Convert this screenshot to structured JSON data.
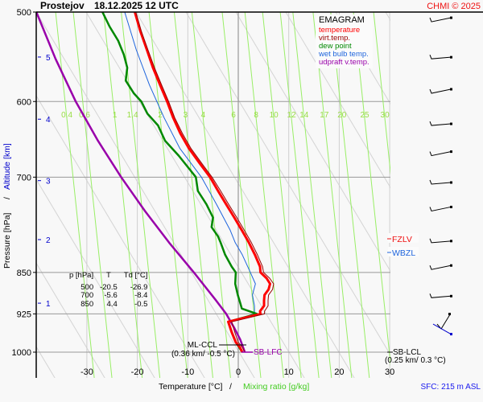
{
  "header": {
    "station": "Prostejov",
    "datetime": "18.12.2025 12 UTC",
    "copyright": "CHMI © 2025"
  },
  "legend": {
    "title": "EMAGRAM",
    "items": [
      {
        "label": "temperature",
        "color": "#ff0000"
      },
      {
        "label": "virt.temp.",
        "color": "#990000"
      },
      {
        "label": "dew point",
        "color": "#008800"
      },
      {
        "label": "wet bulb temp.",
        "color": "#1e64dc"
      },
      {
        "label": "udpraft v.temp.",
        "color": "#9900aa"
      }
    ]
  },
  "value_table": {
    "headers": [
      "p [hPa]",
      "T",
      "Td [°C]"
    ],
    "rows": [
      [
        "500",
        "-20.5",
        "-26.9"
      ],
      [
        "700",
        "-5.6",
        "-8.4"
      ],
      [
        "850",
        "4.4",
        "-0.5"
      ]
    ]
  },
  "annotations": {
    "ml_ccl": "ML-CCL",
    "ml_ccl_detail": "(0.36 km/ -0.5 °C)",
    "sb_lfc": "SB-LFC",
    "sb_lcl": "SB-LCL",
    "sb_lcl_detail": "(0.25 km/ 0.3 °C)",
    "fzlv": "FZLV",
    "wbzl": "WBZL",
    "sfc": "SFC: 215 m ASL"
  },
  "colors": {
    "temperature": "#ff0000",
    "virt_temp": "#990000",
    "dew_point": "#008800",
    "wet_bulb": "#1e64dc",
    "updraft": "#9900aa",
    "mixing": "#99ee66",
    "altitude": "#0000cc"
  },
  "chart_data": {
    "type": "line",
    "title": "Prostejov 18.12.2025 12 UTC",
    "xlabel": "Temperature [°C]",
    "xlabel2": "Mixing ratio [g/kg]",
    "ylabel": "Pressure [hPa]",
    "ylabel2": "Altitude [km]",
    "xlim": [
      -40,
      30
    ],
    "ylim": [
      1000,
      500
    ],
    "x_ticks": [
      "-30",
      "-20",
      "-10",
      "0",
      "10",
      "20",
      "30"
    ],
    "x_tick_values": [
      -30,
      -20,
      -10,
      0,
      10,
      20,
      30
    ],
    "y_ticks": [
      "500",
      "600",
      "700",
      "850",
      "925",
      "1000"
    ],
    "y_tick_values": [
      500,
      600,
      700,
      850,
      925,
      1000
    ],
    "altitude_ticks": [
      {
        "km": "1",
        "p": 905
      },
      {
        "km": "2",
        "p": 795
      },
      {
        "km": "3",
        "p": 705
      },
      {
        "km": "4",
        "p": 622
      },
      {
        "km": "5",
        "p": 548
      }
    ],
    "mixing_ratio_labels": [
      "0.4",
      "0.6",
      "1",
      "1.4",
      "2",
      "3",
      "4",
      "6",
      "8",
      "10",
      "12",
      "14",
      "17",
      "20",
      "25",
      "30"
    ],
    "mixing_ratio_temps_at_label": [
      -33,
      -29.5,
      -23.5,
      -20,
      -14.5,
      -9.5,
      -6,
      0,
      4.5,
      8,
      11.5,
      14,
      18,
      21.5,
      26,
      30
    ],
    "series": [
      {
        "name": "temperature",
        "p": [
          500,
          520,
          540,
          560,
          580,
          600,
          620,
          640,
          660,
          680,
          700,
          720,
          740,
          760,
          780,
          800,
          820,
          840,
          850,
          860,
          870,
          880,
          890,
          900,
          910,
          920,
          925,
          940,
          960,
          980,
          990,
          1000
        ],
        "t": [
          -20.5,
          -19.4,
          -18.1,
          -16.9,
          -15.5,
          -14.1,
          -12.9,
          -11.5,
          -9.8,
          -7.7,
          -5.6,
          -4.0,
          -2.4,
          -0.8,
          0.7,
          2.1,
          3.3,
          4.3,
          4.4,
          5.6,
          6.3,
          6.0,
          5.2,
          5.1,
          5.1,
          4.3,
          4.4,
          -2.0,
          -1.3,
          -0.5,
          0.3,
          0.8
        ]
      },
      {
        "name": "virt.temp.",
        "p": [
          500,
          520,
          540,
          560,
          580,
          600,
          620,
          640,
          660,
          680,
          700,
          720,
          740,
          760,
          780,
          800,
          820,
          840,
          850,
          860,
          870,
          880,
          890,
          900,
          910,
          920,
          925,
          940,
          960,
          980,
          990,
          1000
        ],
        "t": [
          -20.3,
          -19.2,
          -17.9,
          -16.6,
          -15.2,
          -13.8,
          -12.6,
          -11.1,
          -9.4,
          -7.3,
          -5.2,
          -3.5,
          -1.9,
          -0.3,
          1.2,
          2.6,
          3.8,
          4.8,
          5.0,
          6.2,
          7.0,
          6.8,
          6.0,
          5.9,
          5.9,
          5.2,
          5.2,
          -1.3,
          -0.7,
          0.0,
          0.8,
          1.3
        ]
      },
      {
        "name": "dew point",
        "p": [
          500,
          515,
          530,
          545,
          560,
          575,
          590,
          600,
          615,
          630,
          650,
          670,
          690,
          700,
          720,
          740,
          760,
          775,
          790,
          800,
          820,
          840,
          850,
          870,
          890,
          905,
          915,
          925,
          940,
          960,
          980,
          1000
        ],
        "t": [
          -26.9,
          -25.5,
          -23.8,
          -22.7,
          -22.0,
          -22.3,
          -20.7,
          -19.2,
          -18.0,
          -15.9,
          -14.5,
          -11.8,
          -9.5,
          -8.4,
          -8.0,
          -6.3,
          -5.0,
          -5.3,
          -4.0,
          -3.5,
          -2.6,
          -1.3,
          -0.5,
          -0.6,
          -0.1,
          0.4,
          0.7,
          3.7,
          -2.0,
          -1.3,
          -0.5,
          0.8
        ]
      },
      {
        "name": "wet bulb temp.",
        "p": [
          500,
          540,
          580,
          620,
          660,
          700,
          740,
          780,
          800,
          820,
          850,
          870,
          890,
          910,
          925,
          940,
          960,
          980,
          1000
        ],
        "t": [
          -22.5,
          -20.2,
          -17.6,
          -14.7,
          -11.6,
          -7.3,
          -4.3,
          -1.6,
          -0.6,
          0.8,
          2.4,
          3.4,
          2.8,
          3.2,
          3.2,
          -2.0,
          -1.3,
          -0.5,
          0.8
        ]
      },
      {
        "name": "udpraft v.temp.",
        "p": [
          500,
          550,
          600,
          650,
          700,
          750,
          800,
          850,
          900,
          925,
          950,
          975,
          1000
        ],
        "t": [
          -40.0,
          -36.2,
          -32.2,
          -27.8,
          -23.2,
          -18.5,
          -13.7,
          -8.8,
          -4.4,
          -2.4,
          -0.9,
          0.4,
          1.3
        ]
      }
    ],
    "wind_barbs": [
      {
        "p": 510
      },
      {
        "p": 550
      },
      {
        "p": 590
      },
      {
        "p": 630
      },
      {
        "p": 670
      },
      {
        "p": 710
      },
      {
        "p": 750
      },
      {
        "p": 800
      },
      {
        "p": 845
      },
      {
        "p": 895
      },
      {
        "p": 960
      }
    ]
  }
}
